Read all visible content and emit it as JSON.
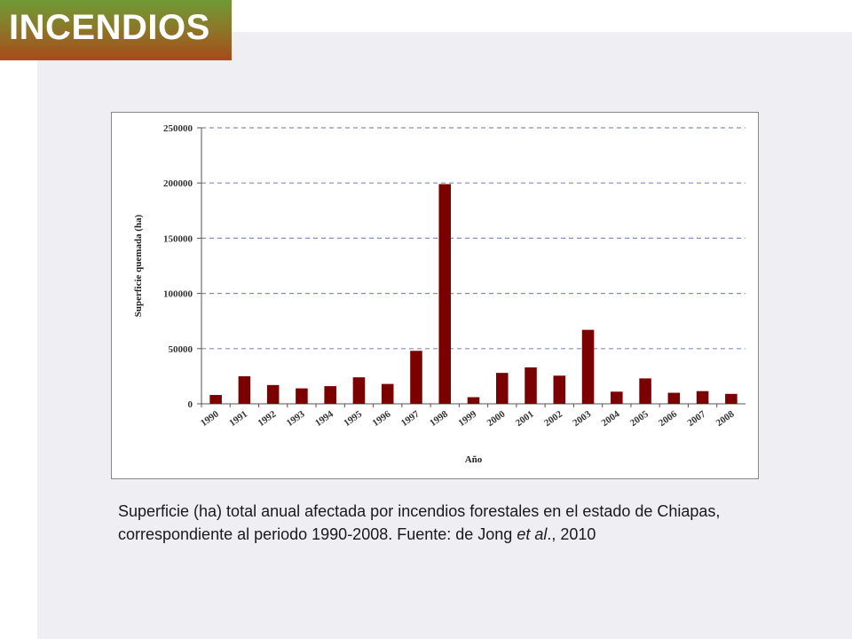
{
  "header": {
    "title": "INCENDIOS"
  },
  "caption": {
    "text_main": "Superficie (ha) total anual afectada por incendios forestales en el estado de Chiapas, correspondiente al periodo 1990-2008.  Fuente: de Jong ",
    "text_italic": "et al",
    "text_end": "., 2010"
  },
  "colors": {
    "bar": "#7b0000",
    "grid": "#7f8fbf"
  },
  "chart_data": {
    "type": "bar",
    "xlabel": "Año",
    "ylabel": "Superficie quemada (ha)",
    "ylim": [
      0,
      250000
    ],
    "yticks": [
      0,
      50000,
      100000,
      150000,
      200000,
      250000
    ],
    "grid": "horizontal dashed",
    "categories": [
      "1990",
      "1991",
      "1992",
      "1993",
      "1994",
      "1995",
      "1996",
      "1997",
      "1998",
      "1999",
      "2000",
      "2001",
      "2002",
      "2003",
      "2004",
      "2005",
      "2006",
      "2007",
      "2008"
    ],
    "values": [
      8000,
      25000,
      17000,
      14000,
      16000,
      24000,
      18000,
      48000,
      199000,
      6000,
      28000,
      33000,
      25500,
      67000,
      11000,
      23000,
      10000,
      11500,
      9000
    ]
  }
}
